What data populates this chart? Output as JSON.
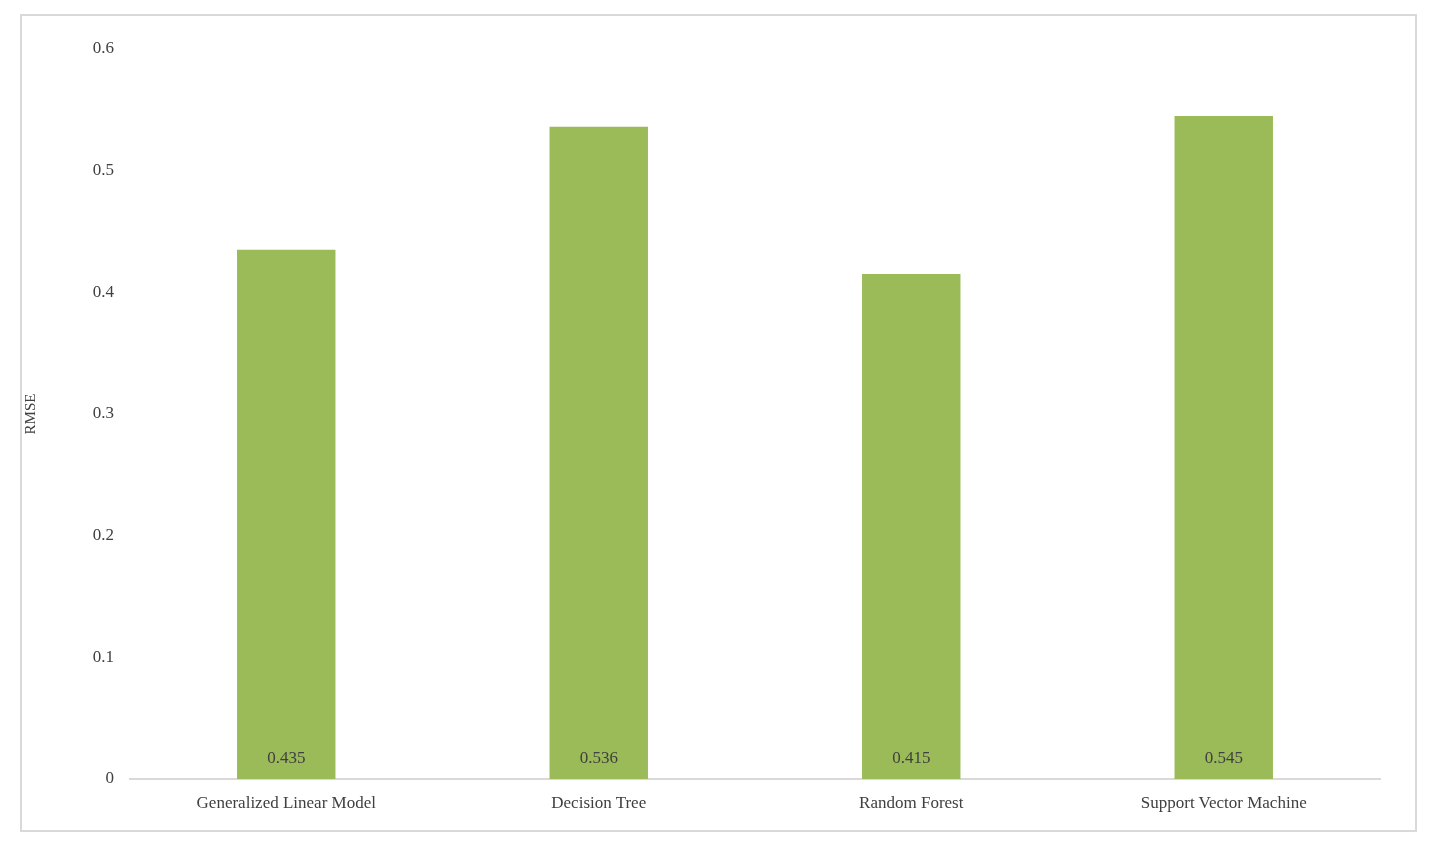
{
  "chart_data": {
    "type": "bar",
    "ylabel": "RMSE",
    "categories": [
      "Generalized Linear Model",
      "Decision Tree",
      "Random Forest",
      "Support Vector Machine"
    ],
    "values": [
      0.435,
      0.536,
      0.415,
      0.545
    ],
    "color": "#9bbb59",
    "ylim": [
      0,
      0.6
    ],
    "yticks": [
      0,
      0.1,
      0.2,
      0.3,
      0.4,
      0.5,
      0.6
    ],
    "grid": false,
    "legend": false,
    "data_labels": true
  }
}
